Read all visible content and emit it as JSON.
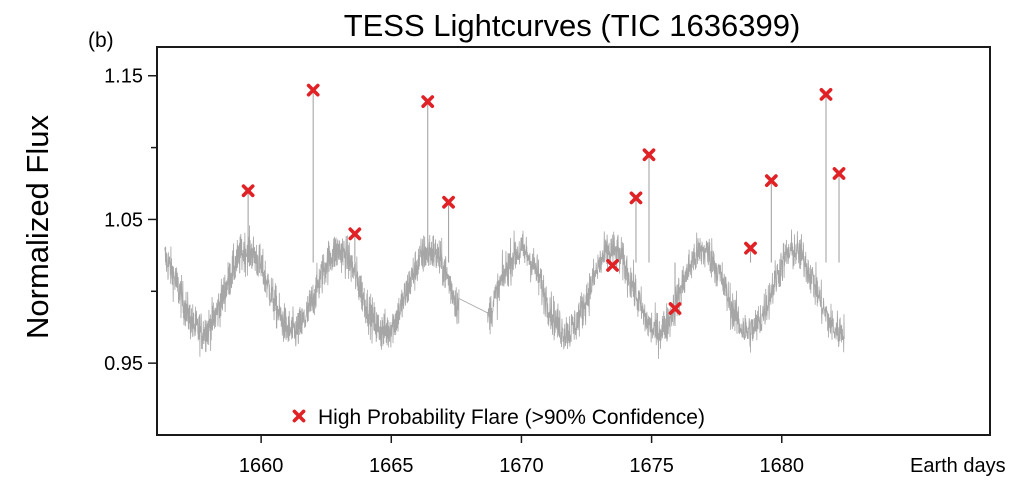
{
  "chart_data": {
    "type": "scatter",
    "panel_label": "(b)",
    "title": "TESS Lightcurves (TIC 1636399)",
    "xlabel": "Earth days",
    "ylabel": "Normalized Flux",
    "xlim": [
      1656.0,
      1688.0
    ],
    "ylim": [
      0.9,
      1.17
    ],
    "x_ticks": [
      {
        "value": 1660,
        "label": "1660"
      },
      {
        "value": 1665,
        "label": "1665"
      },
      {
        "value": 1670,
        "label": "1670"
      },
      {
        "value": 1675,
        "label": "1675"
      },
      {
        "value": 1680,
        "label": "1680"
      }
    ],
    "y_ticks": [
      {
        "value": 0.95,
        "label": "0.95",
        "major": true
      },
      {
        "value": 1.0,
        "label": "",
        "major": false
      },
      {
        "value": 1.05,
        "label": "1.05",
        "major": true
      },
      {
        "value": 1.1,
        "label": "",
        "major": false
      },
      {
        "value": 1.15,
        "label": "1.15",
        "major": true
      }
    ],
    "grid": false,
    "legend": {
      "placement": "bottom-center",
      "label": "High Probability Flare (>90% Confidence)"
    },
    "series": [
      {
        "type": "line",
        "color": "#a6a6a6",
        "segments": [
          {
            "x_start": 1656.3,
            "x_end": 1667.6,
            "x_start_value_label": "",
            "period_days": 3.5,
            "phase_days": 1658.6,
            "mean": 1.0,
            "amplitude": 0.028,
            "noise": 0.014
          },
          {
            "x_start": 1668.7,
            "x_end": 1682.4,
            "period_days": 3.5,
            "phase_days": 1658.6,
            "mean": 1.0,
            "amplitude": 0.028,
            "noise": 0.014
          }
        ],
        "gap_bridge": {
          "from": [
            1667.6,
            0.995
          ],
          "to": [
            1668.7,
            0.985
          ]
        },
        "spikes": [
          {
            "x": 1659.5,
            "y": 1.07
          },
          {
            "x": 1662.0,
            "y": 1.14
          },
          {
            "x": 1663.6,
            "y": 1.04
          },
          {
            "x": 1666.4,
            "y": 1.132
          },
          {
            "x": 1667.2,
            "y": 1.062
          },
          {
            "x": 1673.5,
            "y": 1.018
          },
          {
            "x": 1674.4,
            "y": 1.065
          },
          {
            "x": 1674.9,
            "y": 1.095
          },
          {
            "x": 1675.9,
            "y": 0.988
          },
          {
            "x": 1678.8,
            "y": 1.03
          },
          {
            "x": 1679.6,
            "y": 1.077
          },
          {
            "x": 1681.7,
            "y": 1.137
          },
          {
            "x": 1682.2,
            "y": 1.082
          }
        ]
      },
      {
        "type": "scatter",
        "marker": "x",
        "color": "#e02226",
        "points": [
          {
            "x": 1659.5,
            "y": 1.07
          },
          {
            "x": 1662.0,
            "y": 1.14
          },
          {
            "x": 1663.6,
            "y": 1.04
          },
          {
            "x": 1666.4,
            "y": 1.132
          },
          {
            "x": 1667.2,
            "y": 1.062
          },
          {
            "x": 1673.5,
            "y": 1.018
          },
          {
            "x": 1674.4,
            "y": 1.065
          },
          {
            "x": 1674.9,
            "y": 1.095
          },
          {
            "x": 1675.9,
            "y": 0.988
          },
          {
            "x": 1678.8,
            "y": 1.03
          },
          {
            "x": 1679.6,
            "y": 1.077
          },
          {
            "x": 1681.7,
            "y": 1.137
          },
          {
            "x": 1682.2,
            "y": 1.082
          }
        ]
      }
    ]
  }
}
